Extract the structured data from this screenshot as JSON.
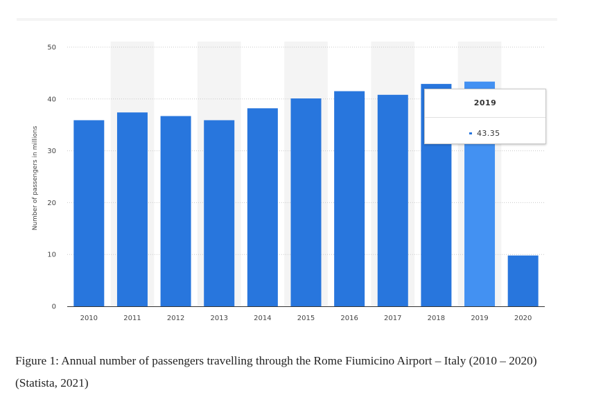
{
  "chart_data": {
    "type": "bar",
    "title": "",
    "xlabel": "",
    "ylabel": "Number of passengers in millions",
    "ylim": [
      0,
      50
    ],
    "yticks": [
      0,
      10,
      20,
      30,
      40,
      50
    ],
    "grid": true,
    "categories": [
      "2010",
      "2011",
      "2012",
      "2013",
      "2014",
      "2015",
      "2016",
      "2017",
      "2018",
      "2019",
      "2020"
    ],
    "values": [
      35.9,
      37.4,
      36.7,
      35.9,
      38.2,
      40.1,
      41.5,
      40.8,
      42.9,
      43.35,
      9.8
    ],
    "highlight_category": "2019",
    "colors": {
      "bar": "#2876dd",
      "bar_highlight": "#4391f2",
      "grid": "#c8c8c8",
      "axis": "#333333",
      "band": "#f4f4f4"
    },
    "tooltip": {
      "title": "2019",
      "value": "43.35"
    }
  },
  "caption": "Figure 1: Annual number of passengers travelling through the Rome Fiumicino Airport – Italy (2010 – 2020) (Statista, 2021)"
}
